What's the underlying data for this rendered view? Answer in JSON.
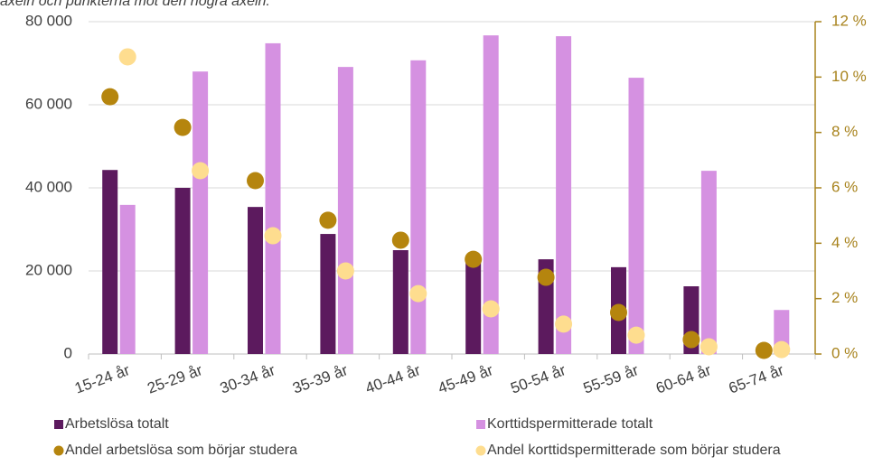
{
  "chart_data": {
    "type": "bar",
    "subtitle": "axeln och punkterna mot den högra axeln.",
    "categories": [
      "15-24 år",
      "25-29 år",
      "30-34 år",
      "35-39 år",
      "40-44 år",
      "45-49 år",
      "50-54 år",
      "55-59 år",
      "60-64 år",
      "65-74 år"
    ],
    "series": [
      {
        "name": "Arbetslösa totalt",
        "type": "bar",
        "color": "#5c1a5e",
        "values": [
          44300,
          40000,
          35400,
          28900,
          25000,
          22500,
          22800,
          20900,
          16300,
          900
        ]
      },
      {
        "name": "Korttidspermitterade totalt",
        "type": "bar",
        "color": "#d591e1",
        "values": [
          35900,
          68000,
          74800,
          69100,
          70700,
          76700,
          76500,
          66500,
          44100,
          10600
        ]
      },
      {
        "name": "Andel arbetslösa som börjar studera",
        "type": "scatter",
        "axis": "y2",
        "color": "#b5850e",
        "values": [
          9.29,
          8.18,
          6.26,
          4.83,
          4.11,
          3.42,
          2.77,
          1.5,
          0.52,
          0.13
        ]
      },
      {
        "name": "Andel korttidspermitterade som börjar studera",
        "type": "scatter",
        "axis": "y2",
        "color": "#fedd8f",
        "values": [
          10.73,
          6.62,
          4.27,
          3.0,
          2.18,
          1.63,
          1.08,
          0.68,
          0.26,
          0.16
        ]
      }
    ],
    "ylim": [
      0,
      80000
    ],
    "yticks": [
      {
        "value": 0,
        "label": "0"
      },
      {
        "value": 20000,
        "label": "20 000"
      },
      {
        "value": 40000,
        "label": "40 000"
      },
      {
        "value": 60000,
        "label": "60 000"
      },
      {
        "value": 80000,
        "label": "80 000"
      }
    ],
    "y2lim": [
      0,
      12
    ],
    "y2ticks": [
      {
        "value": 0,
        "label": "0 %"
      },
      {
        "value": 2,
        "label": "2 %"
      },
      {
        "value": 4,
        "label": "4 %"
      },
      {
        "value": 6,
        "label": "6 %"
      },
      {
        "value": 8,
        "label": "8 %"
      },
      {
        "value": 10,
        "label": "10 %"
      },
      {
        "value": 12,
        "label": "12 %"
      }
    ],
    "y2color": "#a8831d",
    "grid": true
  }
}
